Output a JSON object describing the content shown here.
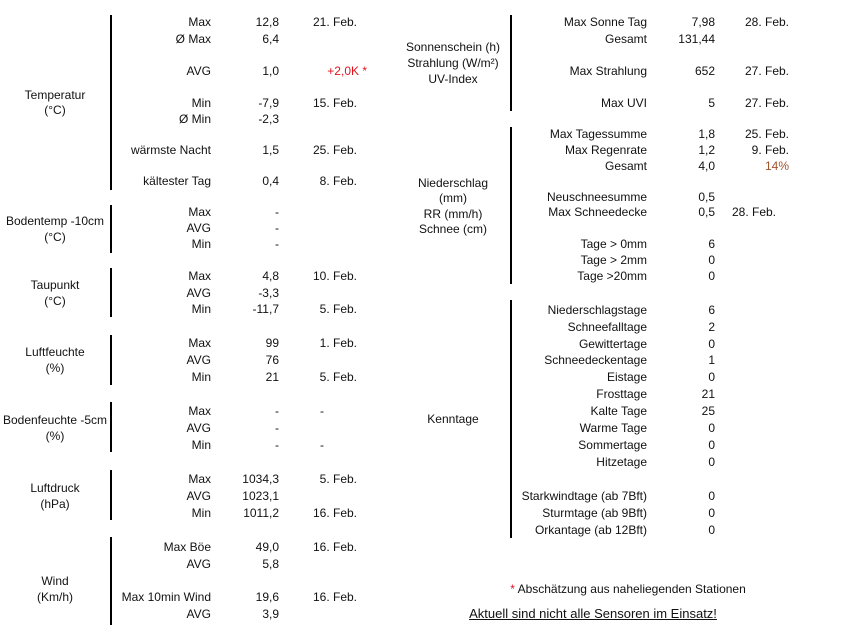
{
  "left_groups": [
    {
      "label": [
        "Temperatur",
        "(°C)"
      ],
      "rows": [
        {
          "label": "Max",
          "value": "12,8",
          "date": "21. Feb."
        },
        {
          "label": "Ø Max",
          "value": "6,4"
        },
        {
          "label": "AVG",
          "value": "1,0",
          "note": "+2,0K *"
        },
        {
          "label": "Min",
          "value": "-7,9",
          "date": "15. Feb."
        },
        {
          "label": "Ø Min",
          "value": "-2,3"
        },
        {
          "label": "wärmste Nacht",
          "value": "1,5",
          "date": "25. Feb."
        },
        {
          "label": "kältester Tag",
          "value": "0,4",
          "date": "8. Feb."
        }
      ]
    },
    {
      "label": [
        "Bodentemp -10cm",
        "(°C)"
      ],
      "rows": [
        {
          "label": "Max",
          "value": "-"
        },
        {
          "label": "AVG",
          "value": "-"
        },
        {
          "label": "Min",
          "value": "-"
        }
      ]
    },
    {
      "label": [
        "Taupunkt",
        "(°C)"
      ],
      "rows": [
        {
          "label": "Max",
          "value": "4,8",
          "date": "10. Feb."
        },
        {
          "label": "AVG",
          "value": "-3,3"
        },
        {
          "label": "Min",
          "value": "-11,7",
          "date": "5. Feb."
        }
      ]
    },
    {
      "label": [
        "Luftfeuchte",
        "(%)"
      ],
      "rows": [
        {
          "label": "Max",
          "value": "99",
          "date": "1. Feb."
        },
        {
          "label": "AVG",
          "value": "76"
        },
        {
          "label": "Min",
          "value": "21",
          "date": "5. Feb."
        }
      ]
    },
    {
      "label": [
        "Bodenfeuchte -5cm",
        "(%)"
      ],
      "rows": [
        {
          "label": "Max",
          "value": "-",
          "extra": "-"
        },
        {
          "label": "AVG",
          "value": "-"
        },
        {
          "label": "Min",
          "value": "-",
          "extra": "-"
        }
      ]
    },
    {
      "label": [
        "Luftdruck",
        "(hPa)"
      ],
      "rows": [
        {
          "label": "Max",
          "value": "1034,3",
          "date": "5. Feb."
        },
        {
          "label": "AVG",
          "value": "1023,1"
        },
        {
          "label": "Min",
          "value": "1011,2",
          "date": "16. Feb."
        }
      ]
    },
    {
      "label": [
        "Wind",
        "(Km/h)"
      ],
      "rows": [
        {
          "label": "Max Böe",
          "value": "49,0",
          "date": "16. Feb."
        },
        {
          "label": "AVG",
          "value": "5,8"
        },
        {
          "label": "Max 10min Wind",
          "value": "19,6",
          "date": "16. Feb."
        },
        {
          "label": "AVG",
          "value": "3,9"
        }
      ]
    }
  ],
  "right_groups": [
    {
      "label": [
        "Sonnenschein (h)",
        "Strahlung (W/m²)",
        "UV-Index"
      ],
      "rows": [
        {
          "label": "Max Sonne Tag",
          "value": "7,98",
          "date": "28. Feb."
        },
        {
          "label": "Gesamt",
          "value": "131,44"
        },
        {
          "label": "Max Strahlung",
          "value": "652",
          "date": "27. Feb."
        },
        {
          "label": "Max UVI",
          "value": "5",
          "date": "27. Feb."
        }
      ]
    },
    {
      "label": [
        "Niederschlag",
        "(mm)",
        "RR  (mm/h)",
        "Schnee (cm)"
      ],
      "rows": [
        {
          "label": "Max Tagessumme",
          "value": "1,8",
          "date": "25. Feb."
        },
        {
          "label": "Max Regenrate",
          "value": "1,2",
          "date": "9. Feb."
        },
        {
          "label": "Gesamt",
          "value": "4,0",
          "note": "14%"
        },
        {
          "label": "Neuschneesumme",
          "value": "0,5"
        },
        {
          "label": "Max Schneedecke",
          "value": "0,5",
          "date2": "28. Feb."
        },
        {
          "label": "Tage > 0mm",
          "value": "6"
        },
        {
          "label": "Tage > 2mm",
          "value": "0"
        },
        {
          "label": "Tage >20mm",
          "value": "0"
        }
      ]
    },
    {
      "label": [
        "Kenntage"
      ],
      "rows": [
        {
          "label": "Niederschlagstage",
          "value": "6"
        },
        {
          "label": "Schneefalltage",
          "value": "2"
        },
        {
          "label": "Gewittertage",
          "value": "0"
        },
        {
          "label": "Schneedeckentage",
          "value": "1"
        },
        {
          "label": "Eistage",
          "value": "0"
        },
        {
          "label": "Frosttage",
          "value": "21"
        },
        {
          "label": "Kalte Tage",
          "value": "25"
        },
        {
          "label": "Warme Tage",
          "value": "0"
        },
        {
          "label": "Sommertage",
          "value": "0"
        },
        {
          "label": "Hitzetage",
          "value": "0"
        },
        {
          "label": "Starkwindtage (ab 7Bft)",
          "value": "0"
        },
        {
          "label": "Sturmtage (ab 9Bft)",
          "value": "0"
        },
        {
          "label": "Orkantage (ab 12Bft)",
          "value": "0"
        }
      ]
    }
  ],
  "footnote": {
    "asterisk": "*",
    "text": " Abschätzung aus naheliegenden Stationen"
  },
  "notice_link": "Aktuell sind nicht alle Sensoren im Einsatz!",
  "colors": {
    "note_red": "#e0141e",
    "note_brown": "#a0522d"
  }
}
